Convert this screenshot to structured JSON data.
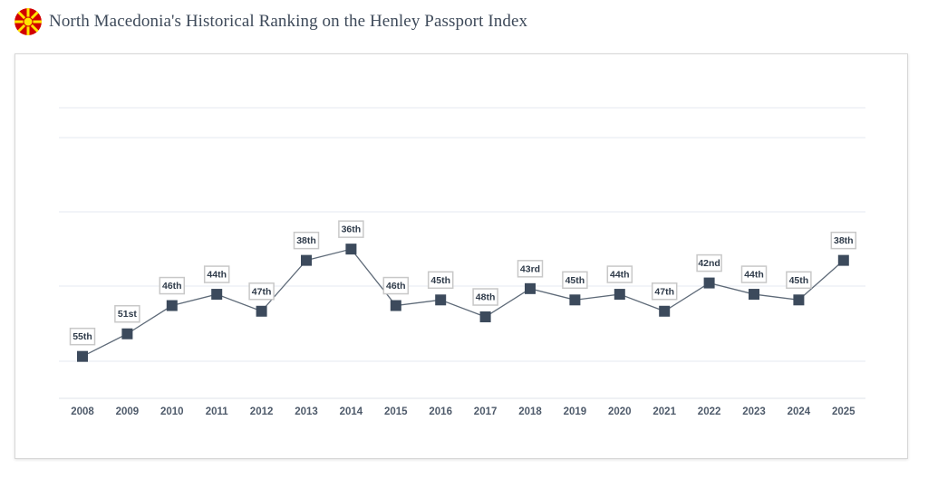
{
  "header": {
    "title": "North Macedonia's Historical Ranking on the Henley Passport Index",
    "flag_icon": "north-macedonia-flag-icon",
    "flag_colors": {
      "field": "#d20000",
      "sun": "#ffe600"
    }
  },
  "colors": {
    "line": "#5e6a78",
    "marker": "#3c4a5c",
    "label_border": "#c8c8c8",
    "label_text": "#2f3b4a",
    "grid": "#e6e9f0",
    "axis_text": "#4f5b6b"
  },
  "chart_data": {
    "type": "line",
    "title": "North Macedonia's Historical Ranking on the Henley Passport Index",
    "xlabel": "",
    "ylabel": "",
    "y_inverted": true,
    "grid": true,
    "categories": [
      "2008",
      "2009",
      "2010",
      "2011",
      "2012",
      "2013",
      "2014",
      "2015",
      "2016",
      "2017",
      "2018",
      "2019",
      "2020",
      "2021",
      "2022",
      "2023",
      "2024",
      "2025"
    ],
    "series": [
      {
        "values": [
          55,
          51,
          46,
          44,
          47,
          38,
          36,
          46,
          45,
          48,
          43,
          45,
          44,
          47,
          42,
          44,
          45,
          38
        ],
        "labels": [
          "55th",
          "51st",
          "46th",
          "44th",
          "47th",
          "38th",
          "36th",
          "46th",
          "45th",
          "48th",
          "43rd",
          "45th",
          "44th",
          "47th",
          "42nd",
          "44th",
          "45th",
          "38th"
        ]
      }
    ]
  }
}
